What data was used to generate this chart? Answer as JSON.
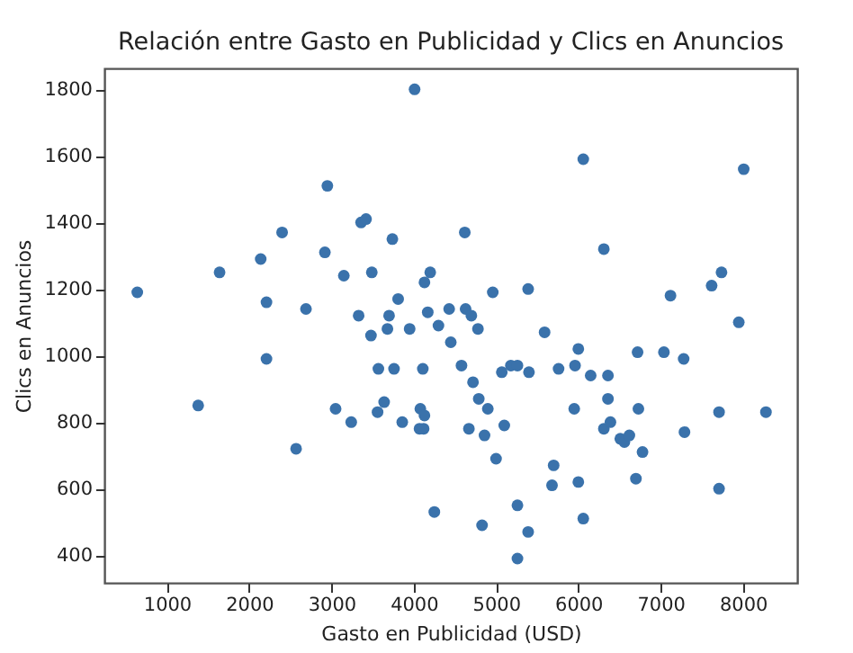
{
  "chart_data": {
    "type": "scatter",
    "title": "Relación entre Gasto en Publicidad y Clics en Anuncios",
    "xlabel": "Gasto en Publicidad (USD)",
    "ylabel": "Clics en Anuncios",
    "marker": "circle",
    "xlim": [
      240,
      8660
    ],
    "ylim": [
      317,
      1863
    ],
    "xticks": [
      1000,
      2000,
      3000,
      4000,
      5000,
      6000,
      7000,
      8000
    ],
    "yticks": [
      400,
      600,
      800,
      1000,
      1200,
      1400,
      1600,
      1800
    ],
    "series": [
      {
        "color": "#3a72ab",
        "x": [
          640,
          1380,
          1640,
          2140,
          2210,
          2210,
          2400,
          2570,
          2690,
          2920,
          2950,
          3050,
          3150,
          3240,
          3330,
          3360,
          3420,
          3480,
          3490,
          3560,
          3570,
          3640,
          3680,
          3700,
          3740,
          3760,
          3810,
          3860,
          3950,
          4010,
          4070,
          4080,
          4110,
          4120,
          4130,
          4130,
          4170,
          4200,
          4250,
          4300,
          4430,
          4450,
          4580,
          4620,
          4630,
          4670,
          4700,
          4720,
          4780,
          4790,
          4830,
          4860,
          4900,
          4960,
          5000,
          5070,
          5100,
          5180,
          5260,
          5260,
          5260,
          5390,
          5390,
          5400,
          5590,
          5680,
          5700,
          5760,
          5950,
          5960,
          6000,
          6000,
          6060,
          6060,
          6150,
          6310,
          6310,
          6360,
          6360,
          6390,
          6510,
          6560,
          6620,
          6700,
          6720,
          6730,
          6780,
          7040,
          7120,
          7280,
          7290,
          7620,
          7710,
          7710,
          7740,
          7950,
          8010,
          8280
        ],
        "values": [
          1190,
          850,
          1250,
          1290,
          1160,
          990,
          1370,
          720,
          1140,
          1310,
          1510,
          840,
          1240,
          800,
          1120,
          1400,
          1410,
          1060,
          1250,
          830,
          960,
          860,
          1080,
          1120,
          1350,
          960,
          1170,
          800,
          1080,
          1800,
          780,
          840,
          960,
          780,
          820,
          1220,
          1130,
          1250,
          530,
          1090,
          1140,
          1040,
          970,
          1370,
          1140,
          780,
          1120,
          920,
          1080,
          870,
          490,
          760,
          840,
          1190,
          690,
          950,
          790,
          970,
          550,
          390,
          970,
          1200,
          470,
          950,
          1070,
          610,
          670,
          960,
          840,
          970,
          1020,
          620,
          1590,
          510,
          940,
          1320,
          780,
          940,
          870,
          800,
          750,
          740,
          760,
          630,
          1010,
          840,
          710,
          1010,
          1180,
          990,
          770,
          1210,
          830,
          600,
          1250,
          1100,
          1560,
          830
        ]
      }
    ]
  }
}
